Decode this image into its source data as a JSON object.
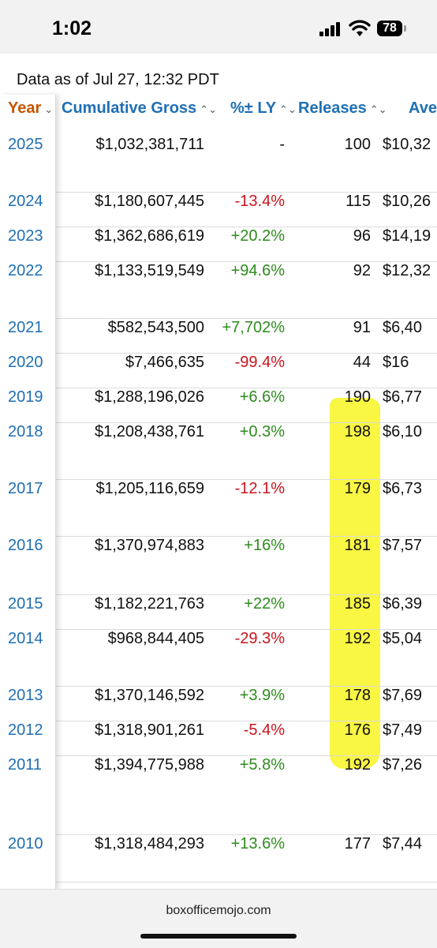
{
  "status_bar": {
    "time": "1:02",
    "battery": "78"
  },
  "page": {
    "data_asof": "Data as of Jul 27, 12:32 PDT",
    "columns": {
      "year": "Year",
      "gross": "Cumulative Gross",
      "ly": "%± LY",
      "releases": "Releases",
      "average": "Ave"
    },
    "rows": [
      {
        "year": "2025",
        "gross": "$1,032,381,711",
        "ly": "-",
        "releases": "100",
        "avg": "$10,32"
      },
      {
        "year": "2024",
        "gross": "$1,180,607,445",
        "ly": "-13.4%",
        "releases": "115",
        "avg": "$10,26"
      },
      {
        "year": "2023",
        "gross": "$1,362,686,619",
        "ly": "+20.2%",
        "releases": "96",
        "avg": "$14,19"
      },
      {
        "year": "2022",
        "gross": "$1,133,519,549",
        "ly": "+94.6%",
        "releases": "92",
        "avg": "$12,32"
      },
      {
        "year": "2021",
        "gross": "$582,543,500",
        "ly": "+7,702%",
        "releases": "91",
        "avg": "$6,40"
      },
      {
        "year": "2020",
        "gross": "$7,466,635",
        "ly": "-99.4%",
        "releases": "44",
        "avg": "$16"
      },
      {
        "year": "2019",
        "gross": "$1,288,196,026",
        "ly": "+6.6%",
        "releases": "190",
        "avg": "$6,77"
      },
      {
        "year": "2018",
        "gross": "$1,208,438,761",
        "ly": "+0.3%",
        "releases": "198",
        "avg": "$6,10"
      },
      {
        "year": "2017",
        "gross": "$1,205,116,659",
        "ly": "-12.1%",
        "releases": "179",
        "avg": "$6,73"
      },
      {
        "year": "2016",
        "gross": "$1,370,974,883",
        "ly": "+16%",
        "releases": "181",
        "avg": "$7,57"
      },
      {
        "year": "2015",
        "gross": "$1,182,221,763",
        "ly": "+22%",
        "releases": "185",
        "avg": "$6,39"
      },
      {
        "year": "2014",
        "gross": "$968,844,405",
        "ly": "-29.3%",
        "releases": "192",
        "avg": "$5,04"
      },
      {
        "year": "2013",
        "gross": "$1,370,146,592",
        "ly": "+3.9%",
        "releases": "178",
        "avg": "$7,69"
      },
      {
        "year": "2012",
        "gross": "$1,318,901,261",
        "ly": "-5.4%",
        "releases": "176",
        "avg": "$7,49"
      },
      {
        "year": "2011",
        "gross": "$1,394,775,988",
        "ly": "+5.8%",
        "releases": "192",
        "avg": "$7,26"
      },
      {
        "year": "2010",
        "gross": "$1,318,484,293",
        "ly": "+13.6%",
        "releases": "177",
        "avg": "$7,44"
      }
    ]
  },
  "bottom_bar": {
    "domain": "boxofficemojo.com"
  },
  "colors": {
    "positive": "#2e8b1e",
    "negative": "#c8141e",
    "link": "#1f6fb5",
    "sorted_header": "#c45500",
    "highlight": "#f8f530"
  }
}
